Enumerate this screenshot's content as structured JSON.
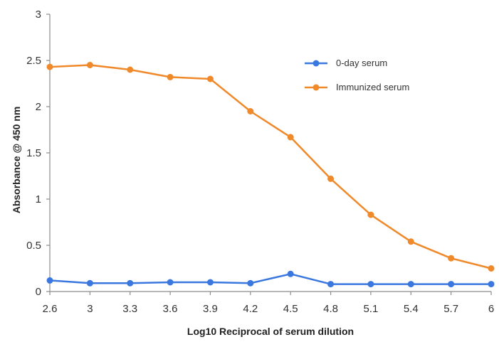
{
  "chart_data": {
    "type": "line",
    "title": "",
    "xlabel": "Log10 Reciprocal  of serum dilution",
    "ylabel": "Absorbance @ 450 nm",
    "x_ticks": [
      "2.6",
      "3",
      "3.3",
      "3.6",
      "3.9",
      "4.2",
      "4.5",
      "4.8",
      "5.1",
      "5.4",
      "5.7",
      "6"
    ],
    "y_ticks": [
      "0",
      "0.5",
      "1",
      "1.5",
      "2",
      "2.5",
      "3"
    ],
    "ylim": [
      0,
      3
    ],
    "grid": false,
    "legend_position": "top-right",
    "series": [
      {
        "name": "0-day serum",
        "color": "#3a78e0",
        "values": [
          0.12,
          0.09,
          0.09,
          0.1,
          0.1,
          0.09,
          0.19,
          0.08,
          0.08,
          0.08,
          0.08,
          0.08
        ]
      },
      {
        "name": "Immunized serum",
        "color": "#f0892a",
        "values": [
          2.43,
          2.45,
          2.4,
          2.32,
          2.3,
          1.95,
          1.67,
          1.22,
          0.83,
          0.54,
          0.36,
          0.25
        ]
      }
    ]
  }
}
